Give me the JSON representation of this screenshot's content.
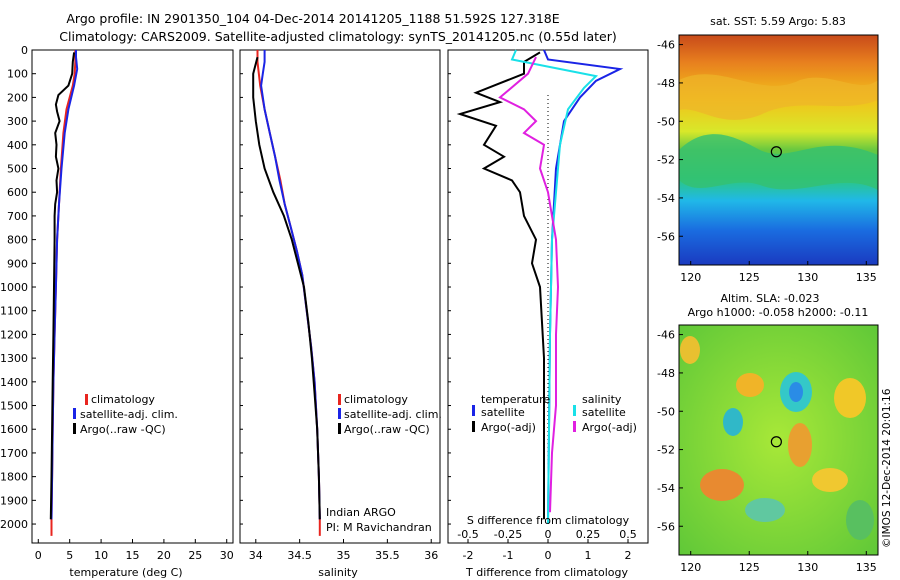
{
  "header": {
    "line1": "Argo profile: IN 2901350_104 04-Dec-2014 20141205_1188 51.592S 127.318E",
    "line2": "Climatology: CARS2009. Satellite-adjusted climatology: synTS_20141205.nc (0.55d later)"
  },
  "colors": {
    "climatology": "#e8251f",
    "satellite": "#1a24e6",
    "argo": "#000000",
    "cyan": "#19e0e8",
    "magenta": "#e020e0"
  },
  "chart_data": [
    {
      "id": "temperature",
      "type": "line",
      "xlabel": "temperature (deg C)",
      "ylabel": "",
      "xlim": [
        -1,
        31
      ],
      "ylim": [
        2080,
        0
      ],
      "xticks": [
        0,
        5,
        10,
        15,
        20,
        25,
        30
      ],
      "yticks": [
        0,
        100,
        200,
        300,
        400,
        500,
        600,
        700,
        800,
        900,
        1000,
        1100,
        1200,
        1300,
        1400,
        1500,
        1600,
        1700,
        1800,
        1900,
        2000
      ],
      "legend": [
        "climatology",
        "satellite-adj. clim.",
        "Argo(..raw -QC)"
      ],
      "series": [
        {
          "name": "climatology",
          "color": "climatology",
          "points": [
            [
              5.9,
              0
            ],
            [
              5.9,
              50
            ],
            [
              5.8,
              100
            ],
            [
              5.5,
              150
            ],
            [
              4.5,
              250
            ],
            [
              4.0,
              350
            ],
            [
              3.6,
              500
            ],
            [
              3.3,
              650
            ],
            [
              3.0,
              800
            ],
            [
              2.8,
              1000
            ],
            [
              2.6,
              1200
            ],
            [
              2.4,
              1400
            ],
            [
              2.3,
              1600
            ],
            [
              2.2,
              1800
            ],
            [
              2.1,
              1980
            ],
            [
              2.1,
              2050
            ]
          ]
        },
        {
          "name": "satellite-adj. clim.",
          "color": "satellite",
          "points": [
            [
              6.0,
              0
            ],
            [
              6.0,
              30
            ],
            [
              6.2,
              80
            ],
            [
              5.7,
              150
            ],
            [
              4.8,
              250
            ],
            [
              4.2,
              350
            ],
            [
              3.7,
              500
            ],
            [
              3.3,
              650
            ],
            [
              3.0,
              800
            ],
            [
              2.8,
              1000
            ],
            [
              2.6,
              1200
            ],
            [
              2.4,
              1400
            ],
            [
              2.3,
              1600
            ],
            [
              2.2,
              1800
            ],
            [
              2.1,
              1980
            ]
          ]
        },
        {
          "name": "Argo(..raw -QC)",
          "color": "argo",
          "points": [
            [
              5.7,
              10
            ],
            [
              5.5,
              50
            ],
            [
              5.4,
              100
            ],
            [
              4.8,
              150
            ],
            [
              3.2,
              190
            ],
            [
              2.8,
              230
            ],
            [
              3.0,
              260
            ],
            [
              3.4,
              300
            ],
            [
              2.7,
              350
            ],
            [
              2.9,
              400
            ],
            [
              2.8,
              450
            ],
            [
              3.2,
              500
            ],
            [
              2.9,
              550
            ],
            [
              3.0,
              600
            ],
            [
              2.7,
              650
            ],
            [
              2.6,
              700
            ],
            [
              2.6,
              800
            ],
            [
              2.5,
              1000
            ],
            [
              2.4,
              1200
            ],
            [
              2.3,
              1400
            ],
            [
              2.2,
              1600
            ],
            [
              2.1,
              1800
            ],
            [
              2.0,
              1980
            ]
          ]
        }
      ]
    },
    {
      "id": "salinity",
      "type": "line",
      "xlabel": "salinity",
      "ylabel": "",
      "xlim": [
        33.82,
        36.1
      ],
      "ylim": [
        2080,
        0
      ],
      "xticks": [
        34,
        34.5,
        35,
        35.5,
        36
      ],
      "legend": [
        "climatology",
        "satellite-adj. clim.",
        "Argo(..raw -QC)"
      ],
      "annotation": [
        "Indian ARGO",
        "PI: M Ravichandran"
      ],
      "series": [
        {
          "name": "climatology",
          "color": "climatology",
          "points": [
            [
              34.02,
              0
            ],
            [
              34.02,
              50
            ],
            [
              34.05,
              150
            ],
            [
              34.1,
              250
            ],
            [
              34.16,
              350
            ],
            [
              34.22,
              450
            ],
            [
              34.28,
              550
            ],
            [
              34.33,
              650
            ],
            [
              34.4,
              750
            ],
            [
              34.47,
              850
            ],
            [
              34.53,
              950
            ],
            [
              34.58,
              1100
            ],
            [
              34.63,
              1250
            ],
            [
              34.67,
              1400
            ],
            [
              34.7,
              1600
            ],
            [
              34.72,
              1800
            ],
            [
              34.73,
              1980
            ],
            [
              34.73,
              2050
            ]
          ]
        },
        {
          "name": "satellite-adj. clim.",
          "color": "satellite",
          "points": [
            [
              34.1,
              0
            ],
            [
              34.1,
              50
            ],
            [
              34.08,
              100
            ],
            [
              34.06,
              150
            ],
            [
              34.1,
              250
            ],
            [
              34.16,
              350
            ],
            [
              34.22,
              450
            ],
            [
              34.27,
              550
            ],
            [
              34.33,
              650
            ],
            [
              34.4,
              750
            ],
            [
              34.47,
              850
            ],
            [
              34.53,
              950
            ],
            [
              34.58,
              1100
            ],
            [
              34.63,
              1250
            ],
            [
              34.67,
              1400
            ],
            [
              34.7,
              1600
            ],
            [
              34.72,
              1800
            ],
            [
              34.73,
              1980
            ]
          ]
        },
        {
          "name": "Argo(..raw -QC)",
          "color": "argo",
          "points": [
            [
              34.02,
              30
            ],
            [
              33.97,
              100
            ],
            [
              33.97,
              200
            ],
            [
              34.0,
              300
            ],
            [
              34.04,
              400
            ],
            [
              34.1,
              500
            ],
            [
              34.2,
              600
            ],
            [
              34.32,
              700
            ],
            [
              34.41,
              800
            ],
            [
              34.48,
              900
            ],
            [
              34.55,
              1000
            ],
            [
              34.6,
              1150
            ],
            [
              34.64,
              1300
            ],
            [
              34.67,
              1450
            ],
            [
              34.7,
              1600
            ],
            [
              34.72,
              1800
            ],
            [
              34.73,
              1980
            ]
          ]
        }
      ]
    },
    {
      "id": "difference",
      "type": "line",
      "xlabel": "T difference from climatology",
      "top_label": "S difference from climatology",
      "xlim": [
        -2.5,
        2.5
      ],
      "ylim": [
        2080,
        0
      ],
      "xticks": [
        -2,
        -1,
        0,
        1,
        2
      ],
      "top_ticks": [
        [
          "-0.5",
          -2
        ],
        [
          "-0.25",
          -1
        ],
        [
          "0",
          0
        ],
        [
          "0.25",
          1
        ],
        [
          "0.5",
          2
        ]
      ],
      "legend_left": {
        "heading": "temperature",
        "items": [
          "satellite",
          "Argo(-adj)"
        ]
      },
      "legend_right": {
        "heading": "salinity",
        "items": [
          "satellite",
          "Argo(-adj)"
        ]
      },
      "series": [
        {
          "name": "satellite T",
          "color": "satellite",
          "points": [
            [
              -0.1,
              0
            ],
            [
              0,
              40
            ],
            [
              1.8,
              80
            ],
            [
              1.2,
              130
            ],
            [
              0.8,
              200
            ],
            [
              0.4,
              300
            ],
            [
              0.2,
              500
            ],
            [
              0.1,
              800
            ],
            [
              0.05,
              1200
            ],
            [
              0,
              2000
            ]
          ]
        },
        {
          "name": "Argo T",
          "color": "argo",
          "points": [
            [
              -0.2,
              10
            ],
            [
              -0.6,
              50
            ],
            [
              -0.6,
              100
            ],
            [
              -1.8,
              180
            ],
            [
              -1.2,
              220
            ],
            [
              -2.2,
              270
            ],
            [
              -1.3,
              320
            ],
            [
              -1.6,
              400
            ],
            [
              -1.1,
              450
            ],
            [
              -1.6,
              500
            ],
            [
              -0.9,
              550
            ],
            [
              -0.7,
              600
            ],
            [
              -0.6,
              700
            ],
            [
              -0.3,
              800
            ],
            [
              -0.4,
              900
            ],
            [
              -0.2,
              1000
            ],
            [
              -0.1,
              1300
            ],
            [
              -0.1,
              1600
            ],
            [
              -0.1,
              1800
            ],
            [
              -0.1,
              1980
            ]
          ]
        },
        {
          "name": "satellite S",
          "color": "cyan",
          "points": [
            [
              -0.8,
              0
            ],
            [
              -0.9,
              40
            ],
            [
              0.3,
              80
            ],
            [
              1.2,
              110
            ],
            [
              0.9,
              160
            ],
            [
              0.5,
              250
            ],
            [
              0.3,
              400
            ],
            [
              0.2,
              600
            ],
            [
              0.1,
              800
            ],
            [
              0.05,
              1200
            ],
            [
              0,
              2000
            ]
          ]
        },
        {
          "name": "Argo S",
          "color": "magenta",
          "points": [
            [
              -0.3,
              30
            ],
            [
              -0.5,
              100
            ],
            [
              -1.2,
              200
            ],
            [
              -0.6,
              250
            ],
            [
              -0.3,
              300
            ],
            [
              -0.6,
              350
            ],
            [
              -0.1,
              400
            ],
            [
              -0.2,
              500
            ],
            [
              0,
              600
            ],
            [
              0.1,
              700
            ],
            [
              0.2,
              800
            ],
            [
              0.25,
              1000
            ],
            [
              0.2,
              1200
            ],
            [
              0.2,
              1500
            ],
            [
              0.1,
              1700
            ],
            [
              0.05,
              1950
            ]
          ]
        }
      ]
    },
    {
      "id": "sst_map",
      "type": "heatmap",
      "title": "sat. SST: 5.59 Argo: 5.83",
      "xlim": [
        119,
        136
      ],
      "ylim": [
        -57.5,
        -45.5
      ],
      "xticks": [
        120,
        125,
        130,
        135
      ],
      "yticks": [
        -46,
        -48,
        -50,
        -52,
        -54,
        -56
      ],
      "marker": [
        127.318,
        -51.592
      ]
    },
    {
      "id": "sla_map",
      "type": "heatmap",
      "title": "Altim. SLA: -0.023",
      "subtitle": "Argo h1000: -0.058 h2000: -0.11",
      "xlim": [
        119,
        136
      ],
      "ylim": [
        -57.5,
        -45.5
      ],
      "xticks": [
        120,
        125,
        130,
        135
      ],
      "yticks": [
        -46,
        -48,
        -50,
        -52,
        -54,
        -56
      ],
      "marker": [
        127.318,
        -51.592
      ]
    }
  ],
  "credit": "©IMOS 12-Dec-2014 20:01:16"
}
